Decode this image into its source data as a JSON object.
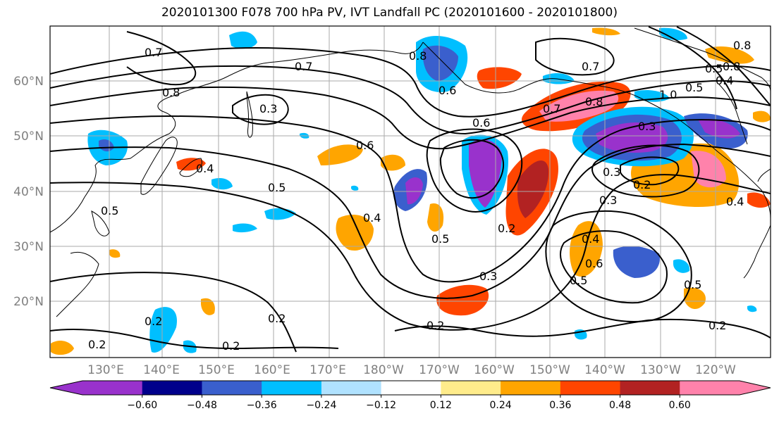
{
  "title": "2020101300 F078 700 hPa PV, IVT Landfall PC (2020101600 - 2020101800)",
  "lat_labels": [
    "60°N",
    "50°N",
    "40°N",
    "30°N",
    "20°N"
  ],
  "lon_labels": [
    "130°E",
    "140°E",
    "150°E",
    "160°E",
    "170°E",
    "180°W",
    "170°W",
    "160°W",
    "150°W",
    "140°W",
    "130°W",
    "120°W"
  ],
  "colorbar": {
    "colors": [
      "#9932CC",
      "#00008B",
      "#3A5FCD",
      "#00BFFF",
      "#B0E2FF",
      "#FFFFFF",
      "#FFEC8B",
      "#FFA500",
      "#FF4500",
      "#B22222",
      "#FF82AB"
    ],
    "ticks": [
      "−0.60",
      "−0.48",
      "−0.36",
      "−0.24",
      "−0.12",
      "0.12",
      "0.24",
      "0.36",
      "0.48",
      "0.60"
    ]
  },
  "contour_labels": [
    "0.7",
    "0.8",
    "0.7",
    "0.3",
    "0.8",
    "0.6",
    "0.6",
    "0.8",
    "0.7",
    "0.8",
    "0.5",
    "0.6",
    "1.0",
    "0.5",
    "0.4",
    "0.8",
    "0.7",
    "0.4",
    "0.5",
    "0.4",
    "0.5",
    "0.4",
    "0.5",
    "0.2",
    "0.3",
    "0.2",
    "0.3",
    "0.3",
    "0.5",
    "0.6",
    "0.5",
    "0.4",
    "0.3",
    "0.2",
    "0.2",
    "0.2",
    "0.2",
    "0.2",
    "0.2"
  ]
}
